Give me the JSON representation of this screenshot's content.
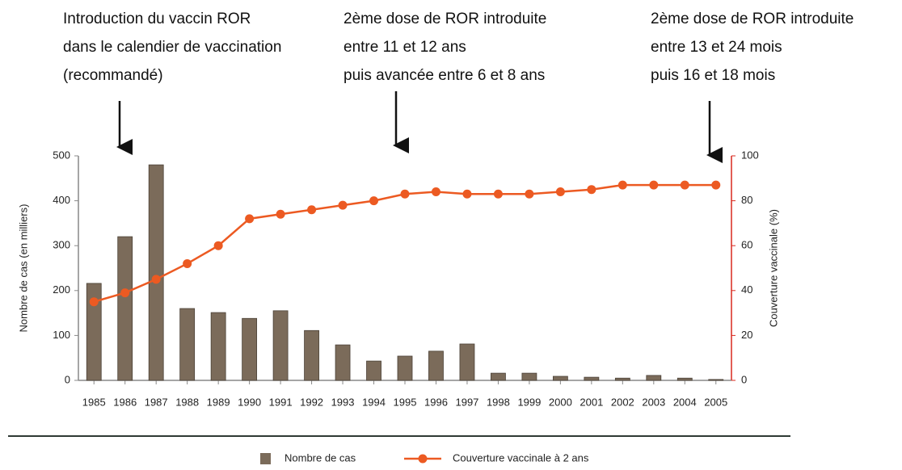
{
  "chart_data": {
    "type": "bar",
    "categories": [
      "1985",
      "1986",
      "1987",
      "1988",
      "1989",
      "1990",
      "1991",
      "1992",
      "1993",
      "1994",
      "1995",
      "1996",
      "1997",
      "1998",
      "1999",
      "2000",
      "2001",
      "2002",
      "2003",
      "2004",
      "2005"
    ],
    "series": [
      {
        "name": "Nombre de cas",
        "type": "bar",
        "color": "#7b6b5a",
        "values": [
          216,
          320,
          480,
          160,
          151,
          138,
          155,
          111,
          79,
          43,
          54,
          65,
          81,
          16,
          16,
          9,
          7,
          5,
          11,
          5,
          2
        ]
      },
      {
        "name": "Couverture vaccinale à 2 ans",
        "type": "line",
        "axis": "y2",
        "color": "#ec5a22",
        "values": [
          35,
          39,
          45,
          52,
          60,
          72,
          74,
          76,
          78,
          80,
          83,
          84,
          83,
          83,
          83,
          84,
          85,
          87,
          87,
          87,
          87
        ]
      }
    ],
    "ylabel": "Nombre de cas (en milliers)",
    "y2label": "Couverture vaccinale (%)",
    "ylim": [
      0,
      500
    ],
    "yticks": [
      0,
      100,
      200,
      300,
      400,
      500
    ],
    "y2lim": [
      0,
      100
    ],
    "y2ticks": [
      0,
      20,
      40,
      60,
      80,
      100
    ],
    "y2color": "#d8291e",
    "annotations": [
      {
        "lines": [
          "Introduction du vaccin ROR",
          "dans le calendier de vaccination",
          "(recommandé)"
        ]
      },
      {
        "lines": [
          "2ème dose de ROR introduite",
          "entre 11 et 12 ans",
          "puis avancée entre 6 et 8 ans"
        ]
      },
      {
        "lines": [
          "2ème dose de ROR introduite",
          "entre 13 et 24 mois",
          "puis 16 et 18 mois"
        ]
      }
    ]
  }
}
